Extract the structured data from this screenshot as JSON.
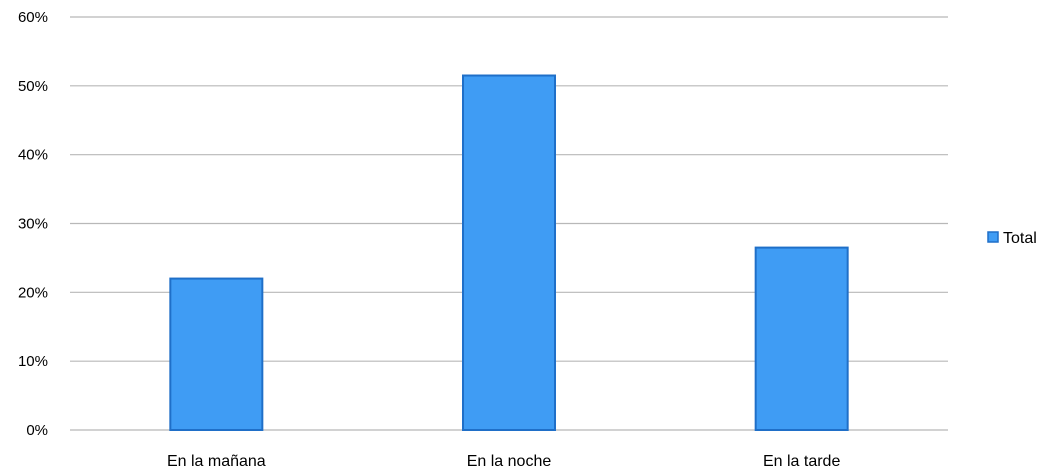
{
  "chart_data": {
    "type": "bar",
    "categories": [
      "En la mañana",
      "En la noche",
      "En la tarde"
    ],
    "series": [
      {
        "name": "Total",
        "values": [
          22,
          51.5,
          26.5
        ],
        "color": "#3f9cf4",
        "border_color": "#1f6fc8"
      }
    ],
    "y_ticks": [
      "0%",
      "10%",
      "20%",
      "30%",
      "40%",
      "50%",
      "60%"
    ],
    "ylim": [
      0,
      60
    ],
    "y_unit": "%",
    "grid": true,
    "gridline_color": "#b8b8b8",
    "legend_position": "right",
    "title": "",
    "xlabel": "",
    "ylabel": ""
  }
}
